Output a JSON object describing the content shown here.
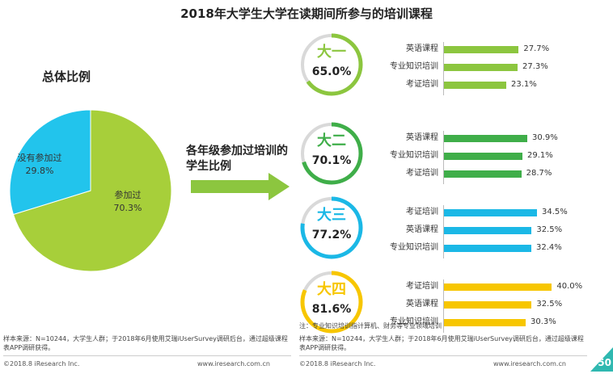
{
  "title": "2018年大学生大学在读期间所参与的培训课程",
  "chart_data": [
    {
      "type": "pie",
      "title": "总体比例",
      "slices": [
        {
          "label": "参加过",
          "value": 70.3,
          "display": "70.3%",
          "color": "#a7cf3a"
        },
        {
          "label": "没有参加过",
          "value": 29.8,
          "display": "29.8%",
          "color": "#22c4ec"
        }
      ]
    },
    {
      "type": "bar",
      "subtitle": "各年级参加过培训的学生比例",
      "groups": [
        {
          "grade": "大一",
          "ratio": 65.0,
          "ratio_display": "65.0%",
          "color": "#8cc63f",
          "bars": [
            {
              "category": "英语课程",
              "value": 27.7,
              "display": "27.7%"
            },
            {
              "category": "专业知识培训",
              "value": 27.3,
              "display": "27.3%"
            },
            {
              "category": "考证培训",
              "value": 23.1,
              "display": "23.1%"
            }
          ]
        },
        {
          "grade": "大二",
          "ratio": 70.1,
          "ratio_display": "70.1%",
          "color": "#3fae49",
          "bars": [
            {
              "category": "英语课程",
              "value": 30.9,
              "display": "30.9%"
            },
            {
              "category": "专业知识培训",
              "value": 29.1,
              "display": "29.1%"
            },
            {
              "category": "考证培训",
              "value": 28.7,
              "display": "28.7%"
            }
          ]
        },
        {
          "grade": "大三",
          "ratio": 77.2,
          "ratio_display": "77.2%",
          "color": "#1bb8e6",
          "bars": [
            {
              "category": "考证培训",
              "value": 34.5,
              "display": "34.5%"
            },
            {
              "category": "英语课程",
              "value": 32.5,
              "display": "32.5%"
            },
            {
              "category": "专业知识培训",
              "value": 32.4,
              "display": "32.4%"
            }
          ]
        },
        {
          "grade": "大四",
          "ratio": 81.6,
          "ratio_display": "81.6%",
          "color": "#f7c600",
          "bars": [
            {
              "category": "考证培训",
              "value": 40.0,
              "display": "40.0%"
            },
            {
              "category": "英语课程",
              "value": 32.5,
              "display": "32.5%"
            },
            {
              "category": "专业知识培训",
              "value": 30.3,
              "display": "30.3%"
            }
          ]
        }
      ],
      "xlim": [
        0,
        45
      ]
    }
  ],
  "note": "注：专业知识培训指计算机、财务等专业领域培训",
  "footer": {
    "source_left": "样本来源：N=10244，大学生人群；于2018年6月使用艾瑞iUserSurvey调研后台，通过超级课程表APP调研获得。",
    "source_right": "样本来源：N=10244，大学生人群；于2018年6月使用艾瑞iUserSurvey调研后台，通过超级课程表APP调研获得。",
    "copyright_left": "©2018.8 iResearch Inc.",
    "site_left": "www.iresearch.com.cn",
    "copyright_right": "©2018.8 iResearch Inc.",
    "site_right": "www.iresearch.com.cn",
    "page": "50"
  }
}
